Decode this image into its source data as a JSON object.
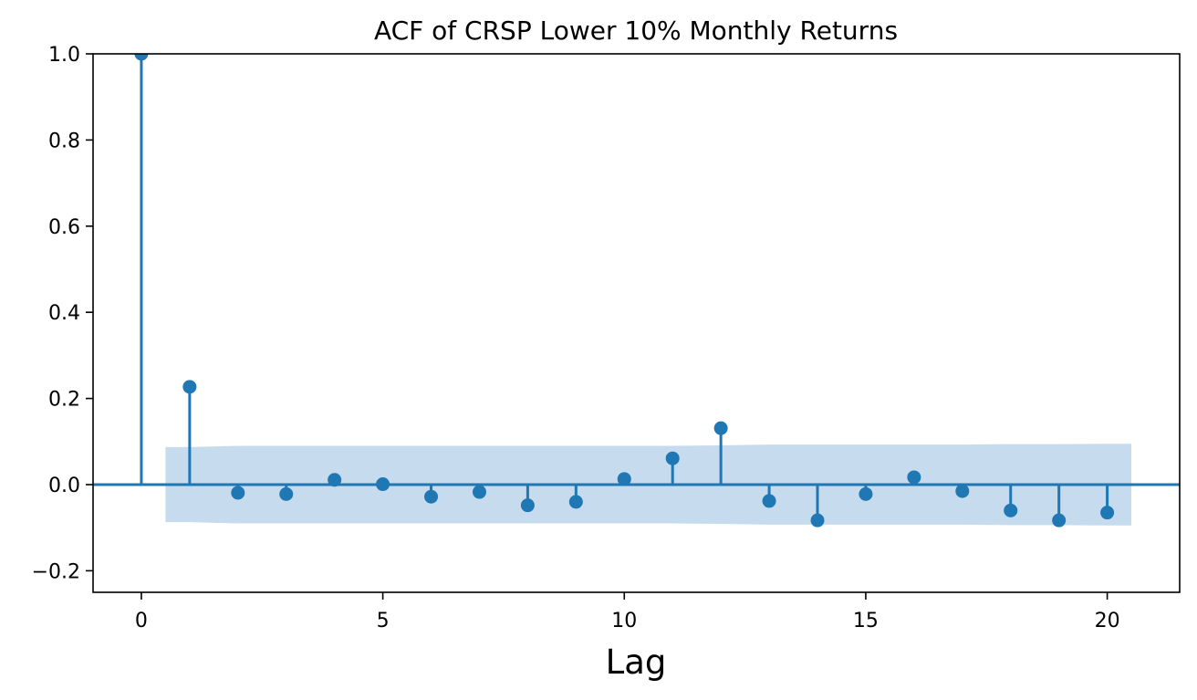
{
  "chart_data": {
    "type": "stem",
    "title": "ACF of CRSP Lower 10% Monthly Returns",
    "xlabel": "Lag",
    "ylabel": "",
    "xlim": [
      -1,
      21.5
    ],
    "ylim": [
      -0.25,
      1.0
    ],
    "xticks": [
      0,
      5,
      10,
      15,
      20
    ],
    "xtick_labels": [
      "0",
      "5",
      "10",
      "15",
      "20"
    ],
    "yticks": [
      -0.2,
      0.0,
      0.2,
      0.4,
      0.6,
      0.8,
      1.0
    ],
    "ytick_labels": [
      "−0.2",
      "0.0",
      "0.2",
      "0.4",
      "0.6",
      "0.8",
      "1.0"
    ],
    "grid": false,
    "color": "#1f77b4",
    "band_color": "#c6dbed",
    "lags": [
      0,
      1,
      2,
      3,
      4,
      5,
      6,
      7,
      8,
      9,
      10,
      11,
      12,
      13,
      14,
      15,
      16,
      17,
      18,
      19,
      20
    ],
    "values": [
      1.0,
      0.227,
      -0.019,
      -0.022,
      0.011,
      0.001,
      -0.028,
      -0.017,
      -0.048,
      -0.04,
      0.013,
      0.061,
      0.131,
      -0.038,
      -0.083,
      -0.022,
      0.017,
      -0.015,
      -0.06,
      -0.083,
      -0.065
    ],
    "confidence_band": {
      "lags": [
        0.5,
        1,
        2,
        3,
        4,
        5,
        6,
        7,
        8,
        9,
        10,
        11,
        12,
        13,
        14,
        15,
        16,
        17,
        18,
        19,
        20,
        20.5
      ],
      "upper": [
        0.087,
        0.087,
        0.09,
        0.09,
        0.09,
        0.09,
        0.09,
        0.09,
        0.09,
        0.09,
        0.09,
        0.09,
        0.091,
        0.093,
        0.093,
        0.093,
        0.093,
        0.093,
        0.094,
        0.094,
        0.095,
        0.095
      ],
      "lower": [
        -0.087,
        -0.087,
        -0.09,
        -0.09,
        -0.09,
        -0.09,
        -0.09,
        -0.09,
        -0.09,
        -0.09,
        -0.09,
        -0.09,
        -0.091,
        -0.093,
        -0.093,
        -0.093,
        -0.093,
        -0.093,
        -0.094,
        -0.094,
        -0.095,
        -0.095
      ]
    }
  }
}
